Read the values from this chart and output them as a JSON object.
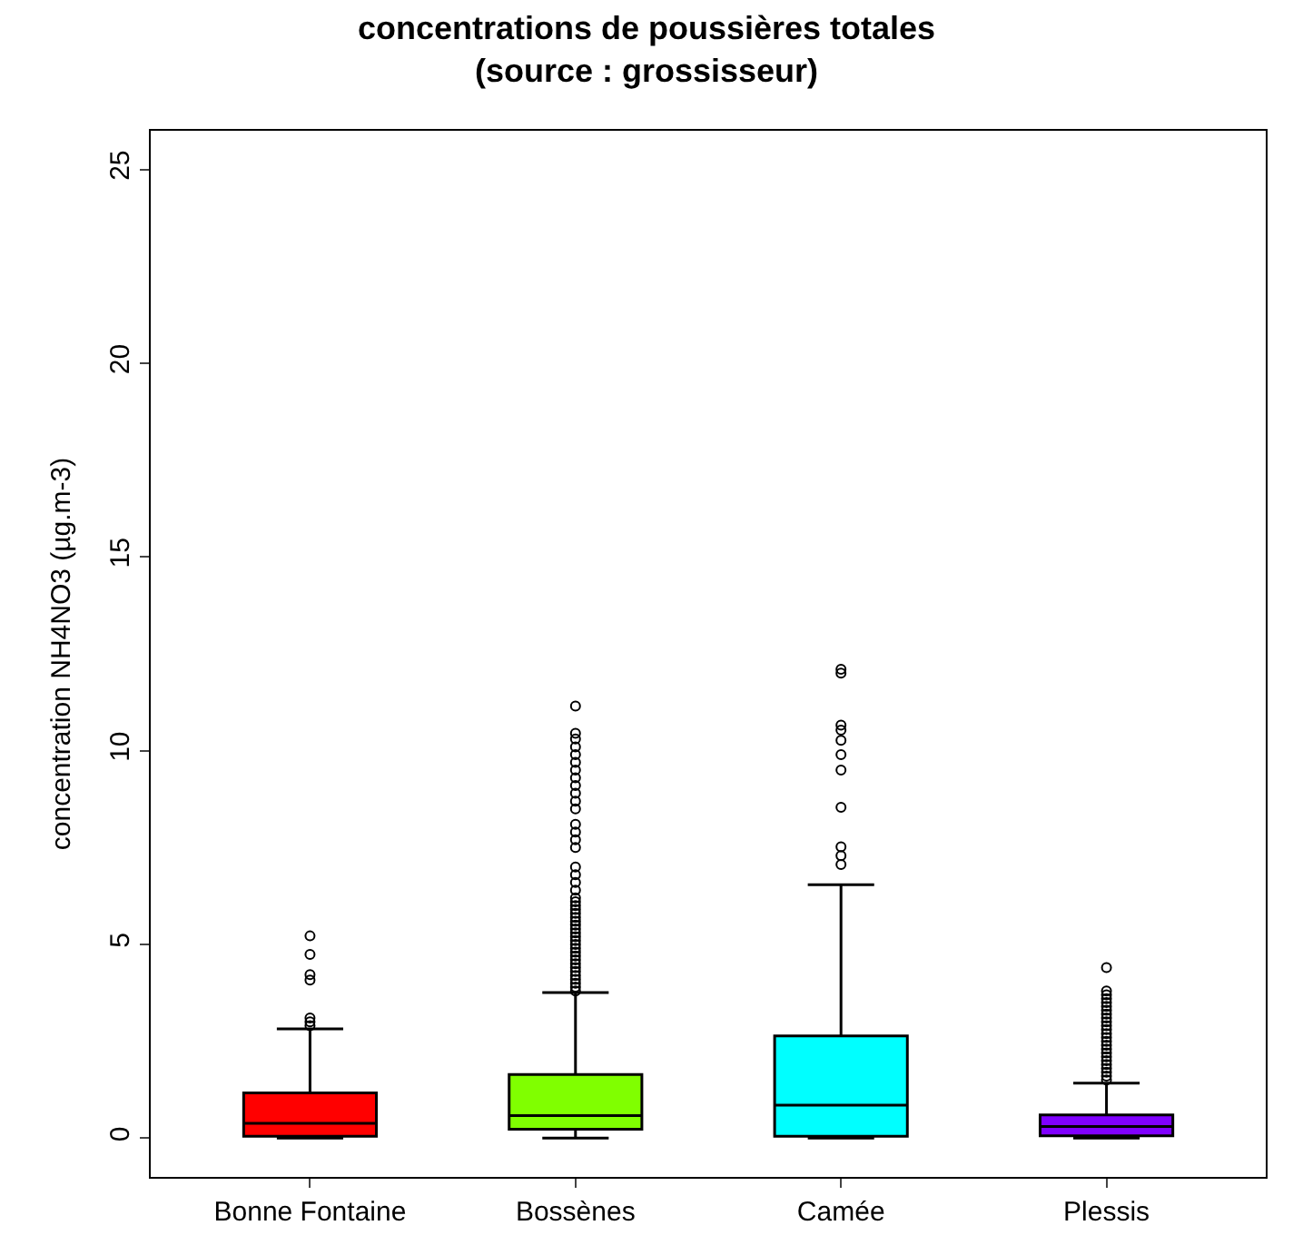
{
  "chart_data": {
    "type": "box",
    "title": "concentrations de poussières totales\n(source : grossisseur)",
    "ylabel": "concentration NH4NO3 (µg.m-3)",
    "categories": [
      "Bonne Fontaine",
      "Bossènes",
      "Camée",
      "Plessis"
    ],
    "colors": [
      "#ff0000",
      "#80ff00",
      "#00ffff",
      "#8000ff"
    ],
    "ylim": [
      -1,
      26
    ],
    "yticks": [
      0,
      5,
      10,
      15,
      20,
      25
    ],
    "marker": "circle",
    "boxes": [
      {
        "low": 0.0,
        "q1": 0.05,
        "median": 0.38,
        "q3": 1.17,
        "high": 2.82,
        "outliers": [
          2.9,
          3.0,
          3.1,
          4.08,
          4.22,
          4.74,
          5.22
        ]
      },
      {
        "low": 0.0,
        "q1": 0.23,
        "median": 0.58,
        "q3": 1.64,
        "high": 3.76,
        "outliers": [
          3.8,
          3.9,
          4.0,
          4.1,
          4.2,
          4.3,
          4.4,
          4.5,
          4.6,
          4.7,
          4.8,
          4.9,
          5.0,
          5.1,
          5.2,
          5.3,
          5.4,
          5.5,
          5.6,
          5.7,
          5.8,
          5.9,
          6.0,
          6.1,
          6.2,
          6.4,
          6.6,
          6.8,
          7.0,
          7.5,
          7.7,
          7.9,
          8.1,
          8.5,
          8.7,
          8.9,
          9.1,
          9.3,
          9.5,
          9.7,
          9.9,
          10.1,
          10.3,
          10.45,
          11.15
        ]
      },
      {
        "low": 0.0,
        "q1": 0.05,
        "median": 0.85,
        "q3": 2.64,
        "high": 6.54,
        "outliers": [
          7.06,
          7.29,
          7.52,
          8.54,
          9.5,
          9.9,
          10.27,
          10.53,
          10.66,
          12.0,
          12.1
        ]
      },
      {
        "low": 0.0,
        "q1": 0.06,
        "median": 0.3,
        "q3": 0.6,
        "high": 1.42,
        "outliers": [
          1.5,
          1.6,
          1.7,
          1.8,
          1.9,
          2.0,
          2.1,
          2.2,
          2.3,
          2.4,
          2.5,
          2.6,
          2.7,
          2.8,
          2.9,
          3.0,
          3.1,
          3.2,
          3.3,
          3.4,
          3.5,
          3.6,
          3.7,
          3.8,
          4.4
        ]
      }
    ]
  }
}
